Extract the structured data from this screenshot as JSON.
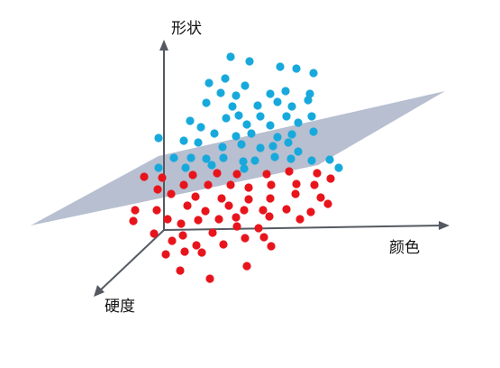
{
  "labels": {
    "shape_axis": "形状",
    "color_axis": "颜色",
    "hardness_axis": "硬度"
  },
  "colors": {
    "class_blue": "#18a9dc",
    "class_red": "#e8141c",
    "plane": "#aab4c8",
    "axis": "#555a62"
  }
}
